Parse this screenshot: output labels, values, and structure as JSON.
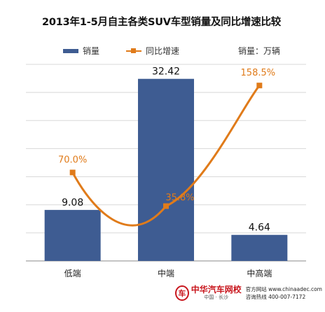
{
  "title": "2013年1-5月自主各类SUV车型销量及同比增速比较",
  "legend": {
    "bar_label": "销量",
    "line_label": "同比增速",
    "unit_label": "销量：万辆"
  },
  "colors": {
    "bar": "#3e5c92",
    "line": "#e07b1a",
    "grid": "#d8d8d8",
    "axis": "#888888"
  },
  "chart_data": {
    "type": "bar",
    "title": "2013年1-5月自主各类SUV车型销量及同比增速比较",
    "categories": [
      "低端",
      "中端",
      "中高端"
    ],
    "series": [
      {
        "name": "销量",
        "type": "bar",
        "values": [
          9.08,
          32.42,
          4.64
        ],
        "value_labels": [
          "9.08",
          "32.42",
          "4.64"
        ]
      },
      {
        "name": "同比增速",
        "type": "line",
        "values": [
          70.0,
          35.8,
          158.5
        ],
        "value_labels": [
          "70.0%",
          "35.8%",
          "158.5%"
        ]
      }
    ],
    "ylabel": "销量：万辆",
    "ylim": [
      0,
      35
    ],
    "y2lim": [
      -20,
      180
    ],
    "grid": true,
    "legend_position": "top"
  },
  "footer": {
    "logo_mark": "车",
    "brand_name": "中华汽车网校",
    "brand_city": "中国 · 长沙",
    "website": "官方网站 www.chinaadec.com",
    "hotline": "咨询热线   400-007-7172"
  }
}
